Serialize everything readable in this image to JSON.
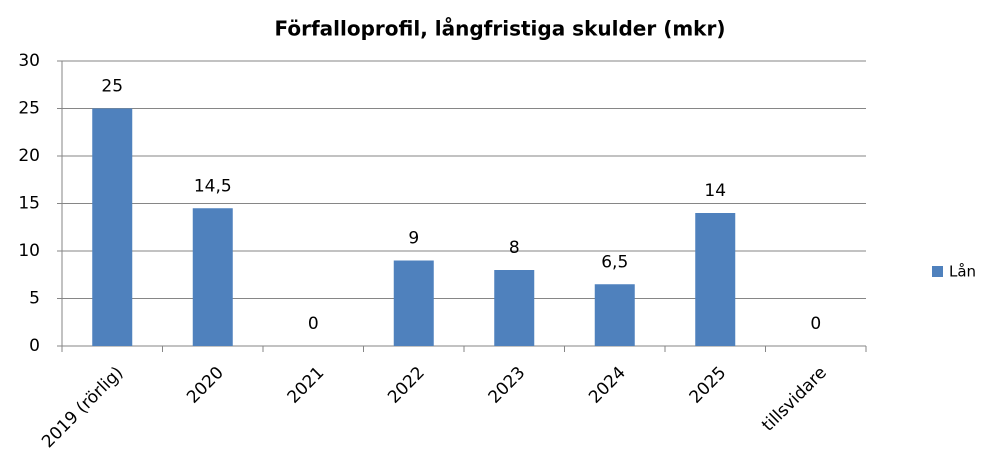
{
  "chart_data": {
    "type": "bar",
    "title": "Förfalloprofil, långfristiga skulder  (mkr)",
    "categories": [
      "2019 (rörlig)",
      "2020",
      "2021",
      "2022",
      "2023",
      "2024",
      "2025",
      "tillsvidare"
    ],
    "series": [
      {
        "name": "Lån",
        "color": "#4f81bd",
        "values": [
          25,
          14.5,
          0,
          9,
          8,
          6.5,
          14,
          0
        ],
        "value_labels": [
          "25",
          "14,5",
          "0",
          "9",
          "8",
          "6,5",
          "14",
          "0"
        ]
      }
    ],
    "ylim": [
      0,
      30
    ],
    "yticks": [
      0,
      5,
      10,
      15,
      20,
      25,
      30
    ],
    "grid": true,
    "legend": "right"
  }
}
